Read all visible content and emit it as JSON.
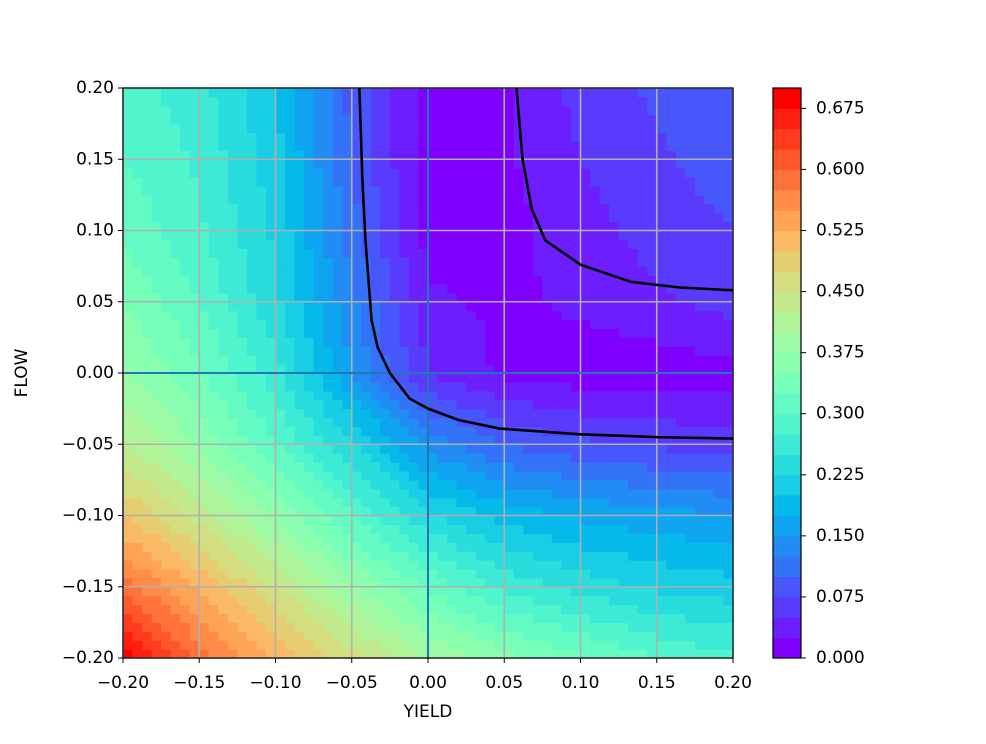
{
  "chart_data": {
    "type": "contour",
    "x_label": "YIELD",
    "y_label": "FLOW",
    "colormap": "rainbow",
    "x": [
      -0.2,
      -0.15,
      -0.1,
      -0.05,
      0,
      0.05,
      0.1,
      0.15,
      0.2
    ],
    "y": [
      -0.2,
      -0.15,
      -0.1,
      -0.05,
      0,
      0.05,
      0.1,
      0.15,
      0.2
    ],
    "z": [
      [
        0.7,
        0.59,
        0.52,
        0.46,
        0.4,
        0.36,
        0.33,
        0.3,
        0.28
      ],
      [
        0.59,
        0.52,
        0.45,
        0.38,
        0.32,
        0.27,
        0.24,
        0.22,
        0.21
      ],
      [
        0.5,
        0.44,
        0.37,
        0.3,
        0.23,
        0.19,
        0.17,
        0.16,
        0.15
      ],
      [
        0.43,
        0.37,
        0.3,
        0.23,
        0.14,
        0.1,
        0.08,
        0.07,
        0.06
      ],
      [
        0.38,
        0.33,
        0.26,
        0.15,
        0.05,
        0.02,
        0.01,
        0.01,
        0.015
      ],
      [
        0.35,
        0.3,
        0.23,
        0.13,
        0.03,
        0.02,
        0.03,
        0.045,
        0.06
      ],
      [
        0.32,
        0.28,
        0.22,
        0.11,
        0.015,
        0.015,
        0.04,
        0.06,
        0.075
      ],
      [
        0.3,
        0.27,
        0.21,
        0.1,
        0.01,
        0.02,
        0.05,
        0.07,
        0.09
      ],
      [
        0.29,
        0.26,
        0.2,
        0.09,
        0.01,
        0.02,
        0.06,
        0.08,
        0.1
      ]
    ],
    "levels": [
      0,
      0.025,
      0.05,
      0.075,
      0.1,
      0.125,
      0.15,
      0.175,
      0.2,
      0.225,
      0.25,
      0.275,
      0.3,
      0.325,
      0.35,
      0.375,
      0.4,
      0.425,
      0.45,
      0.475,
      0.5,
      0.525,
      0.55,
      0.575,
      0.6,
      0.625,
      0.65,
      0.675,
      0.7
    ],
    "contour_lines": [
      {
        "color": "#000000",
        "x": [
          -0.045,
          -0.043,
          -0.041,
          -0.037,
          -0.033,
          -0.025,
          -0.012,
          0,
          0.02,
          0.047,
          0.1,
          0.15,
          0.2
        ],
        "y": [
          0.2,
          0.135,
          0.093,
          0.037,
          0.018,
          0.0,
          -0.018,
          -0.025,
          -0.033,
          -0.039,
          -0.043,
          -0.045,
          -0.046
        ]
      },
      {
        "color": "#000000",
        "x": [
          0.058,
          0.062,
          0.068,
          0.077,
          0.1,
          0.133,
          0.165,
          0.2
        ],
        "y": [
          0.2,
          0.15,
          0.115,
          0.093,
          0.076,
          0.064,
          0.06,
          0.058
        ]
      }
    ],
    "reference_lines": {
      "x": 0,
      "y": 0,
      "color": "#1f77b4"
    },
    "grid": true,
    "xlim": [
      -0.2,
      0.2
    ],
    "ylim": [
      -0.2,
      0.2
    ],
    "xticks": [
      {
        "value": -0.2,
        "label": "−0.20"
      },
      {
        "value": -0.15,
        "label": "−0.15"
      },
      {
        "value": -0.1,
        "label": "−0.10"
      },
      {
        "value": -0.05,
        "label": "−0.05"
      },
      {
        "value": 0,
        "label": "0.00"
      },
      {
        "value": 0.05,
        "label": "0.05"
      },
      {
        "value": 0.1,
        "label": "0.10"
      },
      {
        "value": 0.15,
        "label": "0.15"
      },
      {
        "value": 0.2,
        "label": "0.20"
      }
    ],
    "yticks": [
      {
        "value": -0.2,
        "label": "−0.20"
      },
      {
        "value": -0.15,
        "label": "−0.15"
      },
      {
        "value": -0.1,
        "label": "−0.10"
      },
      {
        "value": -0.05,
        "label": "−0.05"
      },
      {
        "value": 0,
        "label": "0.00"
      },
      {
        "value": 0.05,
        "label": "0.05"
      },
      {
        "value": 0.1,
        "label": "0.10"
      },
      {
        "value": 0.15,
        "label": "0.15"
      },
      {
        "value": 0.2,
        "label": "0.20"
      }
    ],
    "colorbar_ticks": [
      {
        "value": 0,
        "label": "0.000"
      },
      {
        "value": 0.075,
        "label": "0.075"
      },
      {
        "value": 0.15,
        "label": "0.150"
      },
      {
        "value": 0.225,
        "label": "0.225"
      },
      {
        "value": 0.3,
        "label": "0.300"
      },
      {
        "value": 0.375,
        "label": "0.375"
      },
      {
        "value": 0.45,
        "label": "0.450"
      },
      {
        "value": 0.525,
        "label": "0.525"
      },
      {
        "value": 0.6,
        "label": "0.600"
      },
      {
        "value": 0.675,
        "label": "0.675"
      }
    ]
  }
}
